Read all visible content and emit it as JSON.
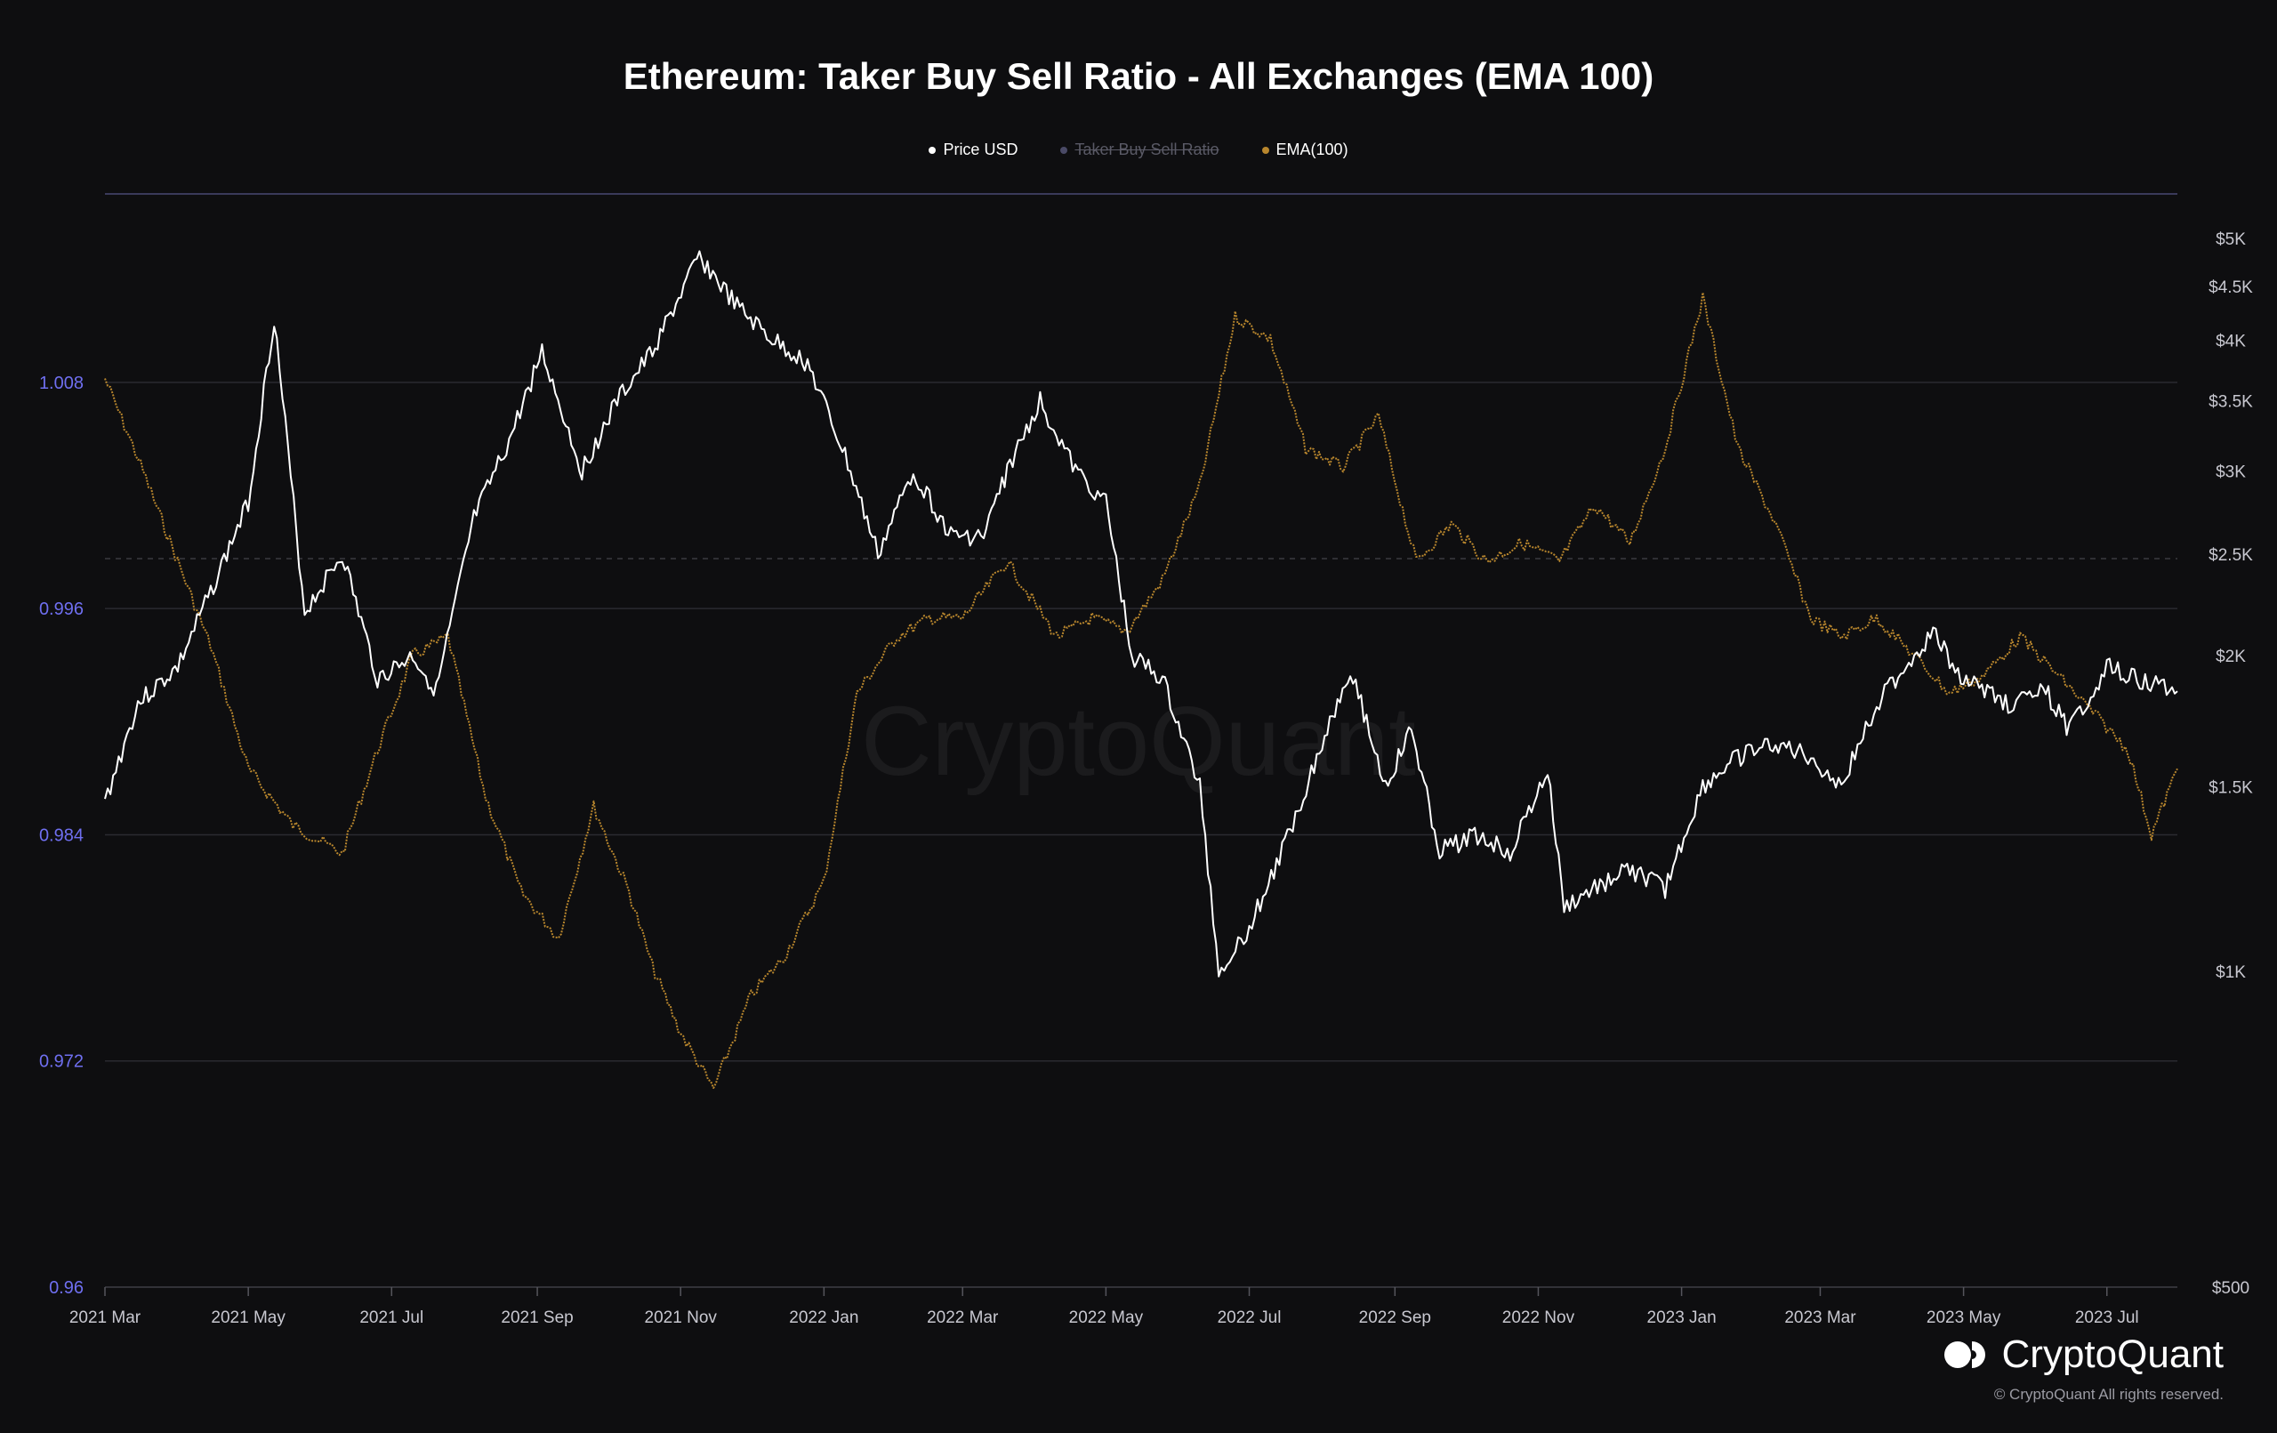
{
  "colors": {
    "background": "#0e0e10",
    "price": "#ffffff",
    "ratio": "#6b6bd6",
    "ema": "#b8862d",
    "left_axis": "#6f6ff0",
    "right_axis": "#c8c8d0"
  },
  "watermark": "CryptoQuant",
  "brand": {
    "name": "CryptoQuant",
    "copyright": "© CryptoQuant All rights reserved.",
    "icon": "cryptoquant-logo-icon"
  },
  "chart_data": {
    "type": "line",
    "title": "Ethereum: Taker Buy Sell Ratio - All Exchanges (EMA 100)",
    "legend": [
      {
        "name": "Price USD",
        "color": "#ffffff",
        "enabled": true
      },
      {
        "name": "Taker Buy Sell Ratio",
        "color": "#6b6bd6",
        "enabled": false
      },
      {
        "name": "EMA(100)",
        "color": "#b8862d",
        "enabled": true
      }
    ],
    "legend_placement": "top-center",
    "x_ticks": [
      "2021 Mar",
      "2021 May",
      "2021 Jul",
      "2021 Sep",
      "2021 Nov",
      "2022 Jan",
      "2022 Mar",
      "2022 May",
      "2022 Jul",
      "2022 Sep",
      "2022 Nov",
      "2023 Jan",
      "2023 Mar",
      "2023 May",
      "2023 Jul"
    ],
    "x_range": [
      "2021-03-01",
      "2023-07-31"
    ],
    "left_axis": {
      "ticks": [
        "1.008",
        "0.996",
        "0.984",
        "0.972",
        "0.96"
      ],
      "range": [
        0.96,
        1.018
      ]
    },
    "right_axis": {
      "scale": "log",
      "ticks": [
        "$5K",
        "$4.5K",
        "$4K",
        "$3.5K",
        "$3K",
        "$2.5K",
        "$2K",
        "$1.5K",
        "$1K",
        "$500"
      ],
      "range": [
        500,
        5000
      ]
    },
    "grid": true,
    "series": [
      {
        "name": "Price USD",
        "axis": "right",
        "x": [
          "2021-03-01",
          "2021-03-15",
          "2021-04-01",
          "2021-04-15",
          "2021-05-01",
          "2021-05-12",
          "2021-05-25",
          "2021-06-10",
          "2021-06-25",
          "2021-07-10",
          "2021-07-20",
          "2021-08-05",
          "2021-08-20",
          "2021-09-03",
          "2021-09-20",
          "2021-10-05",
          "2021-10-20",
          "2021-11-09",
          "2021-11-25",
          "2021-12-10",
          "2021-12-25",
          "2022-01-10",
          "2022-01-24",
          "2022-02-08",
          "2022-02-24",
          "2022-03-10",
          "2022-03-20",
          "2022-04-03",
          "2022-04-18",
          "2022-05-01",
          "2022-05-12",
          "2022-05-25",
          "2022-06-10",
          "2022-06-18",
          "2022-07-01",
          "2022-07-15",
          "2022-08-01",
          "2022-08-13",
          "2022-08-28",
          "2022-09-08",
          "2022-09-20",
          "2022-10-05",
          "2022-10-20",
          "2022-11-05",
          "2022-11-12",
          "2022-11-25",
          "2022-12-10",
          "2022-12-25",
          "2023-01-10",
          "2023-01-25",
          "2023-02-10",
          "2023-02-25",
          "2023-03-10",
          "2023-03-25",
          "2023-04-10",
          "2023-04-18",
          "2023-05-01",
          "2023-05-20",
          "2023-06-05",
          "2023-06-15",
          "2023-07-01",
          "2023-07-15",
          "2023-07-31"
        ],
        "values": [
          1450,
          1800,
          1950,
          2300,
          2800,
          4200,
          2200,
          2500,
          1900,
          2000,
          1850,
          2700,
          3200,
          3900,
          3000,
          3500,
          3900,
          4800,
          4300,
          4000,
          3800,
          3100,
          2500,
          3000,
          2600,
          2600,
          3000,
          3500,
          3000,
          2800,
          2000,
          1900,
          1500,
          1000,
          1100,
          1300,
          1650,
          1950,
          1500,
          1700,
          1300,
          1350,
          1300,
          1550,
          1150,
          1200,
          1250,
          1200,
          1500,
          1600,
          1650,
          1600,
          1500,
          1800,
          2000,
          2100,
          1900,
          1800,
          1850,
          1700,
          1950,
          1900,
          1850
        ]
      },
      {
        "name": "EMA(100)",
        "axis": "left",
        "x": [
          "2021-03-01",
          "2021-03-15",
          "2021-04-01",
          "2021-04-15",
          "2021-05-01",
          "2021-05-20",
          "2021-06-10",
          "2021-06-25",
          "2021-07-10",
          "2021-07-25",
          "2021-08-10",
          "2021-08-25",
          "2021-09-10",
          "2021-09-25",
          "2021-10-10",
          "2021-10-20",
          "2021-11-01",
          "2021-11-15",
          "2021-12-01",
          "2021-12-15",
          "2022-01-01",
          "2022-01-15",
          "2022-02-01",
          "2022-02-15",
          "2022-03-01",
          "2022-03-20",
          "2022-04-10",
          "2022-04-25",
          "2022-05-10",
          "2022-05-25",
          "2022-06-10",
          "2022-06-25",
          "2022-07-10",
          "2022-07-25",
          "2022-08-10",
          "2022-08-25",
          "2022-09-10",
          "2022-09-25",
          "2022-10-10",
          "2022-10-25",
          "2022-11-10",
          "2022-11-25",
          "2022-12-10",
          "2022-12-25",
          "2023-01-10",
          "2023-01-25",
          "2023-02-10",
          "2023-02-25",
          "2023-03-10",
          "2023-03-25",
          "2023-04-10",
          "2023-04-25",
          "2023-05-10",
          "2023-05-25",
          "2023-06-10",
          "2023-06-25",
          "2023-07-10",
          "2023-07-20",
          "2023-07-31"
        ],
        "values": [
          1.0082,
          1.004,
          0.9985,
          0.994,
          0.9875,
          0.9845,
          0.983,
          0.9885,
          0.9935,
          0.9945,
          0.986,
          0.981,
          0.9785,
          0.9855,
          0.981,
          0.977,
          0.9735,
          0.9705,
          0.9755,
          0.9775,
          0.9815,
          0.9915,
          0.9945,
          0.9955,
          0.9955,
          0.9985,
          0.9945,
          0.9955,
          0.9948,
          0.9975,
          1.0025,
          1.0115,
          1.0103,
          1.0045,
          1.0035,
          1.0062,
          0.9985,
          1.0005,
          0.9985,
          0.9995,
          0.9985,
          1.0015,
          0.9995,
          1.0045,
          1.0125,
          1.0045,
          1.0005,
          0.9955,
          0.9945,
          0.9955,
          0.9935,
          0.9915,
          0.9925,
          0.9945,
          0.9925,
          0.9905,
          0.9885,
          0.984,
          0.9875
        ]
      }
    ]
  }
}
